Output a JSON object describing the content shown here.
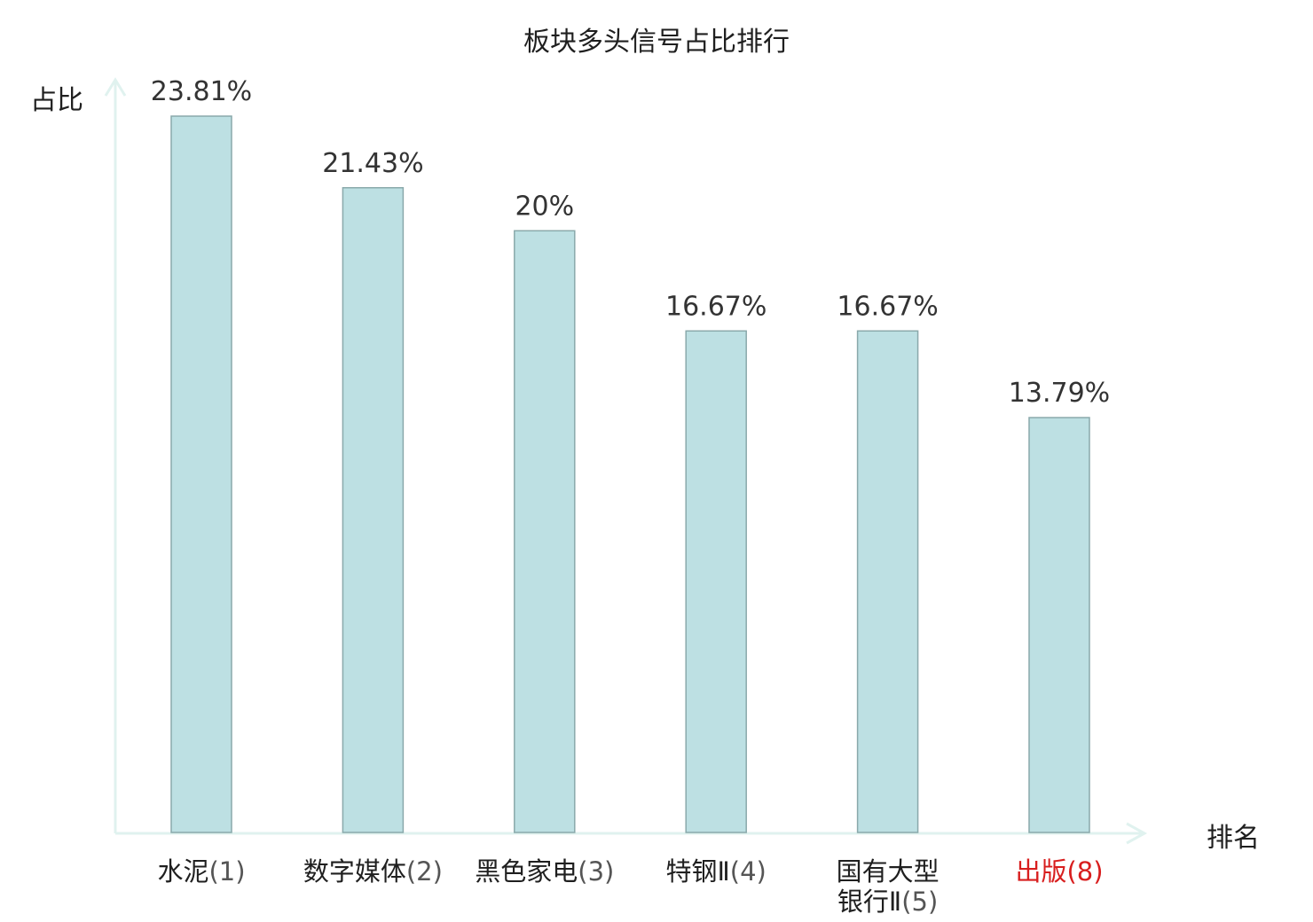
{
  "chart_data": {
    "type": "bar",
    "title": "板块多头信号占比排行",
    "ylabel": "占比",
    "xlabel": "排名",
    "ylim": [
      0,
      25
    ],
    "grid": false,
    "categories": [
      {
        "name": "水泥",
        "rank": "(1)",
        "highlight": false
      },
      {
        "name": "数字媒体",
        "rank": "(2)",
        "highlight": false
      },
      {
        "name": "黑色家电",
        "rank": "(3)",
        "highlight": false
      },
      {
        "name": "特钢Ⅱ",
        "rank": "(4)",
        "highlight": false
      },
      {
        "name": "国有大型银行Ⅱ",
        "rank": "(5)",
        "highlight": false
      },
      {
        "name": "出版",
        "rank": "(8)",
        "highlight": true
      }
    ],
    "values": [
      23.81,
      21.43,
      20,
      16.67,
      16.67,
      13.79
    ],
    "value_labels": [
      "23.81%",
      "21.43%",
      "20%",
      "16.67%",
      "16.67%",
      "13.79%"
    ],
    "colors": {
      "bar_fill": "#bde0e3",
      "bar_stroke": "#8aa9ab",
      "axis": "#e0f2ef",
      "highlight_text": "#d81e1e",
      "normal_text": "#1f1f1f"
    }
  }
}
